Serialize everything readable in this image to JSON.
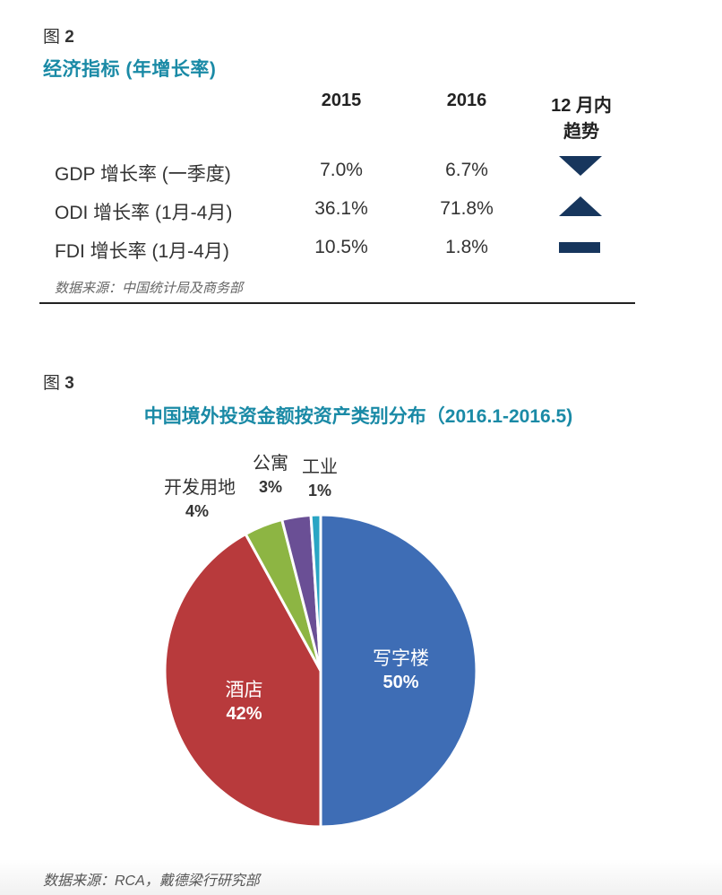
{
  "figure2": {
    "label_prefix": "图",
    "label_number": "2",
    "title": "经济指标 (年增长率)",
    "headers": [
      "2015",
      "2016",
      "12 月内",
      "趋势"
    ],
    "rows": [
      {
        "label": "GDP 增长率 (一季度)",
        "v2015": "7.0%",
        "v2016": "6.7%",
        "trend": "down"
      },
      {
        "label": "ODI 增长率 (1月-4月)",
        "v2015": "36.1%",
        "v2016": "71.8%",
        "trend": "up"
      },
      {
        "label": "FDI 增长率 (1月-4月)",
        "v2015": "10.5%",
        "v2016": "1.8%",
        "trend": "flat"
      }
    ],
    "source": "数据来源：中国统计局及商务部",
    "trend_color": "#17365d"
  },
  "figure3": {
    "label_prefix": "图",
    "label_number": "3",
    "title": "中国境外投资金额按资产类别分布（2016.1-2016.5)",
    "chart_data": {
      "type": "pie",
      "title": "中国境外投资金额按资产类别分布（2016.1-2016.5)",
      "slices": [
        {
          "name": "写字楼",
          "value": 50,
          "label": "50%",
          "color": "#3e6db5"
        },
        {
          "name": "酒店",
          "value": 42,
          "label": "42%",
          "color": "#b83a3c"
        },
        {
          "name": "开发用地",
          "value": 4,
          "label": "4%",
          "color": "#8db543"
        },
        {
          "name": "公寓",
          "value": 3,
          "label": "3%",
          "color": "#6a4f95"
        },
        {
          "name": "工业",
          "value": 1,
          "label": "1%",
          "color": "#2aa5c4"
        }
      ]
    }
  },
  "footer": {
    "source": "数据来源：RCA，戴德梁行研究部"
  }
}
